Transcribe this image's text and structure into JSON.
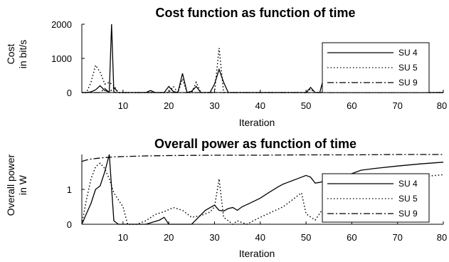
{
  "chart_data": [
    {
      "type": "line",
      "title": "Cost function as function of time",
      "xlabel": "Iteration",
      "ylabel_lines": [
        "Cost",
        "in bit/s"
      ],
      "xlim": [
        1,
        80
      ],
      "ylim": [
        0,
        2000
      ],
      "xticks": [
        10,
        20,
        30,
        40,
        50,
        60,
        70,
        80
      ],
      "yticks": [
        0,
        1000,
        2000
      ],
      "legend": "right",
      "series": [
        {
          "name": "SU 4",
          "style": "solid",
          "x": [
            1,
            2,
            3,
            4,
            5,
            6,
            7,
            7.5,
            8,
            9,
            10,
            11,
            12,
            13,
            14,
            15,
            16,
            17,
            18,
            19,
            20,
            21,
            22,
            23,
            24,
            25,
            26,
            27,
            28,
            29,
            30,
            31,
            32,
            33,
            40,
            48,
            49,
            50,
            51,
            52,
            53,
            54,
            55,
            56,
            60,
            70,
            80
          ],
          "y": [
            0,
            0,
            20,
            80,
            200,
            60,
            20,
            2000,
            10,
            0,
            0,
            0,
            0,
            0,
            0,
            0,
            60,
            0,
            0,
            0,
            180,
            30,
            0,
            560,
            0,
            40,
            180,
            0,
            0,
            0,
            250,
            680,
            300,
            0,
            0,
            0,
            0,
            0,
            150,
            0,
            0,
            500,
            0,
            0,
            0,
            0,
            0
          ]
        },
        {
          "name": "SU 5",
          "style": "dotted",
          "x": [
            1,
            2,
            3,
            4,
            5,
            6,
            7,
            8,
            9,
            10,
            15,
            20,
            21,
            22,
            23,
            24,
            25,
            26,
            27,
            28,
            29,
            30,
            31,
            32,
            33,
            40,
            48,
            49,
            50,
            51,
            52,
            53,
            54,
            55,
            56,
            60,
            70,
            80
          ],
          "y": [
            0,
            0,
            300,
            800,
            600,
            250,
            300,
            200,
            0,
            0,
            0,
            0,
            180,
            0,
            400,
            0,
            0,
            300,
            0,
            0,
            0,
            0,
            1300,
            0,
            0,
            0,
            0,
            0,
            0,
            100,
            0,
            0,
            0,
            0,
            0,
            0,
            0,
            0
          ]
        },
        {
          "name": "SU 9",
          "style": "dashdot",
          "x": [
            1,
            2,
            3,
            4,
            5,
            6,
            7,
            8,
            9,
            10,
            20,
            30,
            40,
            50,
            60,
            70,
            80
          ],
          "y": [
            0,
            0,
            0,
            0,
            0,
            120,
            0,
            150,
            0,
            0,
            0,
            0,
            0,
            0,
            0,
            0,
            0
          ]
        }
      ]
    },
    {
      "type": "line",
      "title": "Overall power as function of time",
      "xlabel": "Iteration",
      "ylabel_lines": [
        "Overall power",
        "in W"
      ],
      "xlim": [
        1,
        80
      ],
      "ylim": [
        0,
        2
      ],
      "xticks": [
        10,
        20,
        30,
        40,
        50,
        60,
        70,
        80
      ],
      "yticks": [
        0,
        1
      ],
      "legend": "right",
      "series": [
        {
          "name": "SU 4",
          "style": "solid",
          "x": [
            1,
            2,
            3,
            4,
            5,
            6,
            7,
            8,
            9,
            10,
            15,
            18,
            19,
            20,
            25,
            28,
            30,
            31,
            32,
            33,
            34,
            35,
            36,
            38,
            40,
            42,
            44,
            45,
            46,
            48,
            50,
            51,
            52,
            53,
            55,
            57,
            60,
            62,
            65,
            70,
            75,
            80
          ],
          "y": [
            0,
            0.3,
            0.6,
            1.0,
            1.1,
            1.5,
            2.0,
            0.1,
            0,
            0,
            0,
            0.12,
            0.2,
            0,
            0,
            0.4,
            0.55,
            0.4,
            0.38,
            0.45,
            0.48,
            0.4,
            0.5,
            0.62,
            0.75,
            0.92,
            1.08,
            1.15,
            1.2,
            1.3,
            1.4,
            1.35,
            1.18,
            1.2,
            1.28,
            1.35,
            1.45,
            1.55,
            1.6,
            1.67,
            1.73,
            1.78
          ]
        },
        {
          "name": "SU 5",
          "style": "dotted",
          "x": [
            1,
            2,
            3,
            4,
            5,
            6,
            7,
            8,
            9,
            10,
            11,
            13,
            15,
            17,
            19,
            21,
            23,
            25,
            27,
            29,
            30,
            31,
            32,
            33,
            34,
            35,
            36,
            37,
            40,
            45,
            49,
            50,
            52,
            54,
            56,
            60,
            70,
            80
          ],
          "y": [
            0,
            0.7,
            1.3,
            1.65,
            1.75,
            1.6,
            1.3,
            0.9,
            0.7,
            0.5,
            0,
            0,
            0.1,
            0.28,
            0.36,
            0.48,
            0.4,
            0.2,
            0.25,
            0.35,
            0.5,
            1.3,
            0.2,
            0.1,
            0,
            0.1,
            0.05,
            0,
            0.2,
            0.5,
            0.9,
            0.3,
            0.12,
            0.5,
            0.8,
            1.05,
            1.3,
            1.42
          ]
        },
        {
          "name": "SU 9",
          "style": "dashdot",
          "x": [
            1,
            2,
            3,
            5,
            8,
            10,
            15,
            20,
            30,
            40,
            50,
            60,
            70,
            80
          ],
          "y": [
            1.8,
            1.84,
            1.87,
            1.9,
            1.93,
            1.94,
            1.96,
            1.97,
            1.98,
            1.98,
            1.99,
            1.99,
            2.0,
            2.0
          ]
        }
      ]
    }
  ]
}
